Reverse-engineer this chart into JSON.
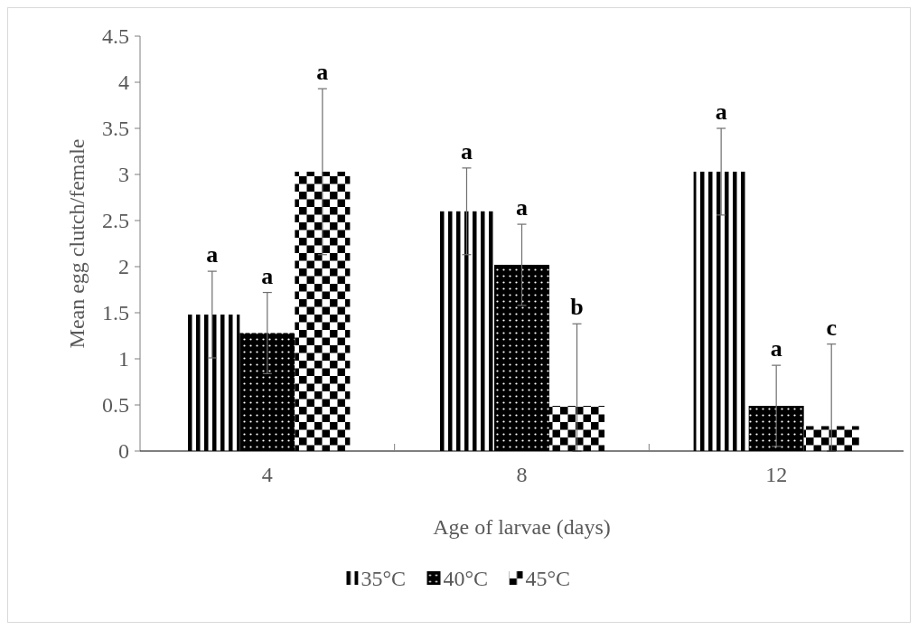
{
  "chart_data": {
    "type": "bar",
    "ylabel": "Mean egg clutch/female",
    "xlabel": "Age of larvae (days)",
    "categories": [
      "4",
      "8",
      "12"
    ],
    "series": [
      {
        "name": "35°C",
        "color": "#000000",
        "values": [
          1.48,
          2.6,
          3.03
        ],
        "errors": [
          0.47,
          0.47,
          0.47
        ]
      },
      {
        "name": "40°C",
        "color": "#000000",
        "values": [
          1.28,
          2.02,
          0.49
        ],
        "errors": [
          0.44,
          0.44,
          0.44
        ]
      },
      {
        "name": "45°C",
        "color": "#000000",
        "values": [
          3.03,
          0.49,
          0.27
        ],
        "errors": [
          0.9,
          [
            0,
            1.38
          ],
          [
            0,
            1.16
          ]
        ]
      }
    ],
    "ylim": [
      0,
      4.5
    ],
    "yticks": [
      0,
      0.5,
      1,
      1.5,
      2,
      2.5,
      3,
      3.5,
      4,
      4.5
    ],
    "grid": false,
    "legend": "bottom",
    "annotations": [
      "a",
      "a",
      "a",
      "a",
      "a",
      "b",
      "a",
      "a",
      "c"
    ]
  }
}
